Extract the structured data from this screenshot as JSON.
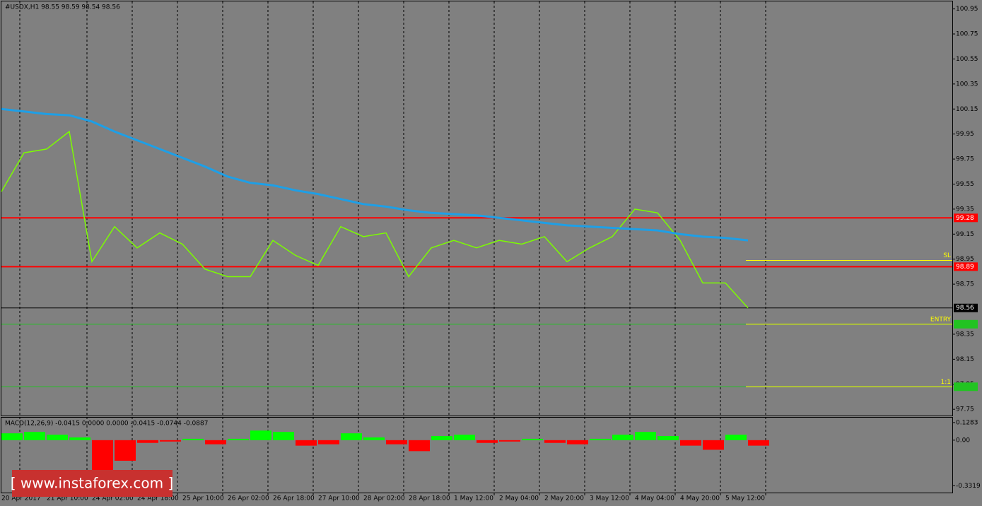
{
  "chart_data": [
    {
      "type": "line",
      "title": "#USDX,H1  98.55 98.59 98.54 98.56",
      "categories": [
        "20 Apr 2017",
        null,
        "21 Apr 10:00",
        null,
        "24 Apr 02:00",
        null,
        "24 Apr 18:00",
        null,
        "25 Apr 10:00",
        null,
        "26 Apr 02:00",
        null,
        "26 Apr 18:00",
        null,
        "27 Apr 10:00",
        null,
        "28 Apr 02:00",
        null,
        "28 Apr 18:00",
        null,
        "1 May 12:00",
        null,
        "2 May 04:00",
        null,
        "2 May 20:00",
        null,
        "3 May 12:00",
        null,
        "4 May 04:00",
        null,
        "4 May 20:00",
        null,
        "5 May 12:00",
        null
      ],
      "series": [
        {
          "color": "#7cfc00",
          "values": [
            99.49,
            99.8,
            99.83,
            99.97,
            98.93,
            99.21,
            99.04,
            99.16,
            99.07,
            98.87,
            98.81,
            98.81,
            99.1,
            98.98,
            98.9,
            99.21,
            99.13,
            99.16,
            98.81,
            99.04,
            99.1,
            99.04,
            99.1,
            99.07,
            99.13,
            98.93,
            99.04,
            99.13,
            99.35,
            99.32,
            99.1,
            98.76,
            98.76,
            98.56
          ]
        },
        {
          "color": "#1e9fe6",
          "values": [
            100.15,
            100.13,
            100.11,
            100.1,
            100.05,
            99.97,
            99.9,
            99.83,
            99.76,
            99.69,
            99.61,
            99.56,
            99.54,
            99.5,
            99.47,
            99.43,
            99.39,
            99.37,
            99.34,
            99.32,
            99.31,
            99.3,
            99.28,
            99.26,
            99.24,
            99.22,
            99.21,
            99.2,
            99.19,
            99.18,
            99.15,
            99.13,
            99.12,
            99.1
          ]
        }
      ],
      "ylim": [
        97.7,
        101.01
      ],
      "yticks": [
        100.95,
        100.75,
        100.55,
        100.35,
        100.15,
        99.95,
        99.75,
        99.55,
        99.35,
        99.15,
        98.95,
        98.75,
        98.35,
        98.15,
        97.95,
        97.75
      ],
      "levels": [
        {
          "value": 99.28,
          "label": "99.28",
          "color": "#ff0000"
        },
        {
          "value": 98.89,
          "label": "98.89",
          "color": "#ff0000"
        },
        {
          "value": 98.56,
          "label": "98.56",
          "color": "#000000"
        }
      ],
      "trade_lines": [
        {
          "name": "SL",
          "value": 98.94
        },
        {
          "name": "ENTRY",
          "value": 98.43
        },
        {
          "name": "1:1",
          "value": 97.93
        }
      ]
    },
    {
      "type": "bar",
      "title": "MACD(12,26,9) -0.0415 0.0000 0.0000 -0.0415 -0.0744 -0.0887",
      "values": [
        0.05,
        0.06,
        0.04,
        0.02,
        -0.25,
        -0.15,
        -0.02,
        -0.01,
        0.01,
        -0.03,
        0.01,
        0.07,
        0.06,
        -0.04,
        -0.03,
        0.05,
        0.02,
        -0.03,
        -0.08,
        0.03,
        0.04,
        -0.02,
        -0.01,
        0.01,
        -0.02,
        -0.03,
        0.01,
        0.04,
        0.06,
        0.03,
        -0.04,
        -0.07,
        0.04,
        -0.04
      ],
      "colors": {
        "positive": "#00ff00",
        "negative": "#ff0000"
      },
      "ylim": [
        -0.382,
        0.164
      ],
      "yticks": [
        0.1283,
        {
          "value": 0,
          "label": "0.00"
        },
        -0.3319
      ]
    }
  ],
  "watermark": "[ www.instaforex.com ]"
}
